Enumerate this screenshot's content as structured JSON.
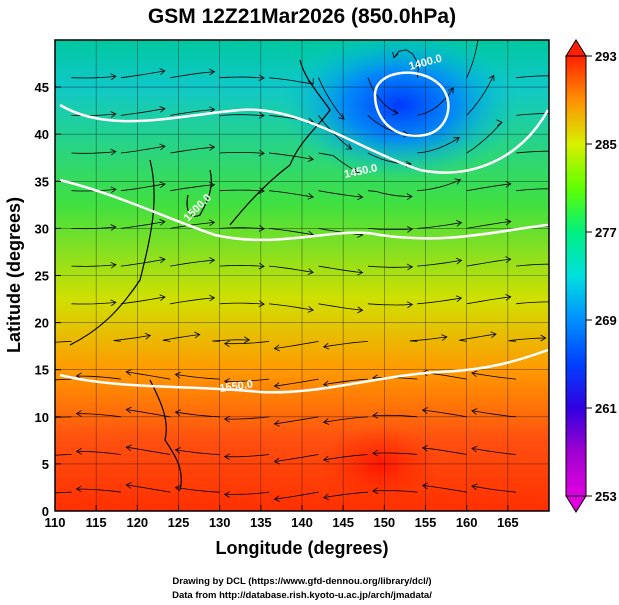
{
  "chart_data": {
    "type": "heatmap",
    "title": "GSM 12Z21Mar2026 (850.0hPa)",
    "xlabel": "Longitude (degrees)",
    "ylabel": "Latitude  (degrees)",
    "xlim": [
      110,
      170
    ],
    "ylim": [
      0,
      50
    ],
    "x_ticks": [
      110,
      115,
      120,
      125,
      130,
      135,
      140,
      145,
      150,
      155,
      160,
      165
    ],
    "y_ticks": [
      0,
      5,
      10,
      15,
      20,
      25,
      30,
      35,
      40,
      45
    ],
    "grid": true,
    "field": "temperature (K)",
    "overlay": "streamlines (wind)",
    "colorbar": {
      "min": 253,
      "max": 293,
      "tick_values": [
        253,
        261,
        269,
        277,
        285,
        293
      ],
      "colors": [
        "#e000e0",
        "#c000d0",
        "#5000e0",
        "#0020ff",
        "#0080ff",
        "#00d0ff",
        "#00e8d0",
        "#00f090",
        "#40ff00",
        "#a0f000",
        "#e0f000",
        "#ffc000",
        "#ff9000",
        "#ff5000",
        "#ff2000"
      ]
    },
    "temperature_samples": [
      {
        "lon": 110,
        "lat": 45,
        "value": 276
      },
      {
        "lon": 130,
        "lat": 45,
        "value": 273
      },
      {
        "lon": 150,
        "lat": 45,
        "value": 264
      },
      {
        "lon": 170,
        "lat": 45,
        "value": 270
      },
      {
        "lon": 110,
        "lat": 30,
        "value": 278
      },
      {
        "lon": 150,
        "lat": 30,
        "value": 277
      },
      {
        "lon": 110,
        "lat": 15,
        "value": 289
      },
      {
        "lon": 150,
        "lat": 15,
        "value": 287
      },
      {
        "lon": 110,
        "lat": 5,
        "value": 291
      },
      {
        "lon": 150,
        "lat": 5,
        "value": 292
      }
    ],
    "contours": [
      {
        "label": "1400.0",
        "level": 1400.0
      },
      {
        "label": "1450.0",
        "level": 1450.0
      },
      {
        "label": "1500.0",
        "level": 1500.0
      },
      {
        "label": "1550.0",
        "level": 1550.0
      }
    ],
    "credits": [
      "Drawing by DCL (https://www.gfd-dennou.org/library/dcl/)",
      "Data from http://database.rish.kyoto-u.ac.jp/arch/jmadata/"
    ]
  }
}
